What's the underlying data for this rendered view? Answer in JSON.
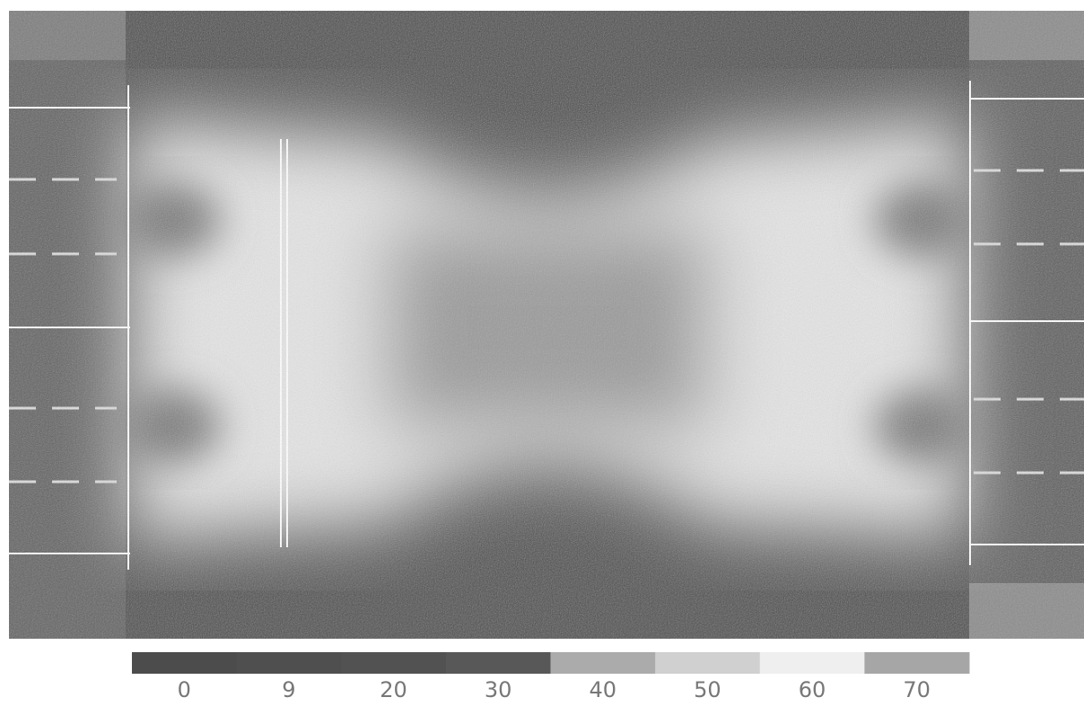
{
  "colorbar": {
    "labels": [
      0,
      9,
      20,
      30,
      40,
      50,
      60,
      70
    ],
    "colors": [
      "#4c4c4c",
      "#4f4f4f",
      "#525252",
      "#585858",
      "#ababab",
      "#d0d0d0",
      "#efefef",
      "#a6a6a6"
    ]
  }
}
